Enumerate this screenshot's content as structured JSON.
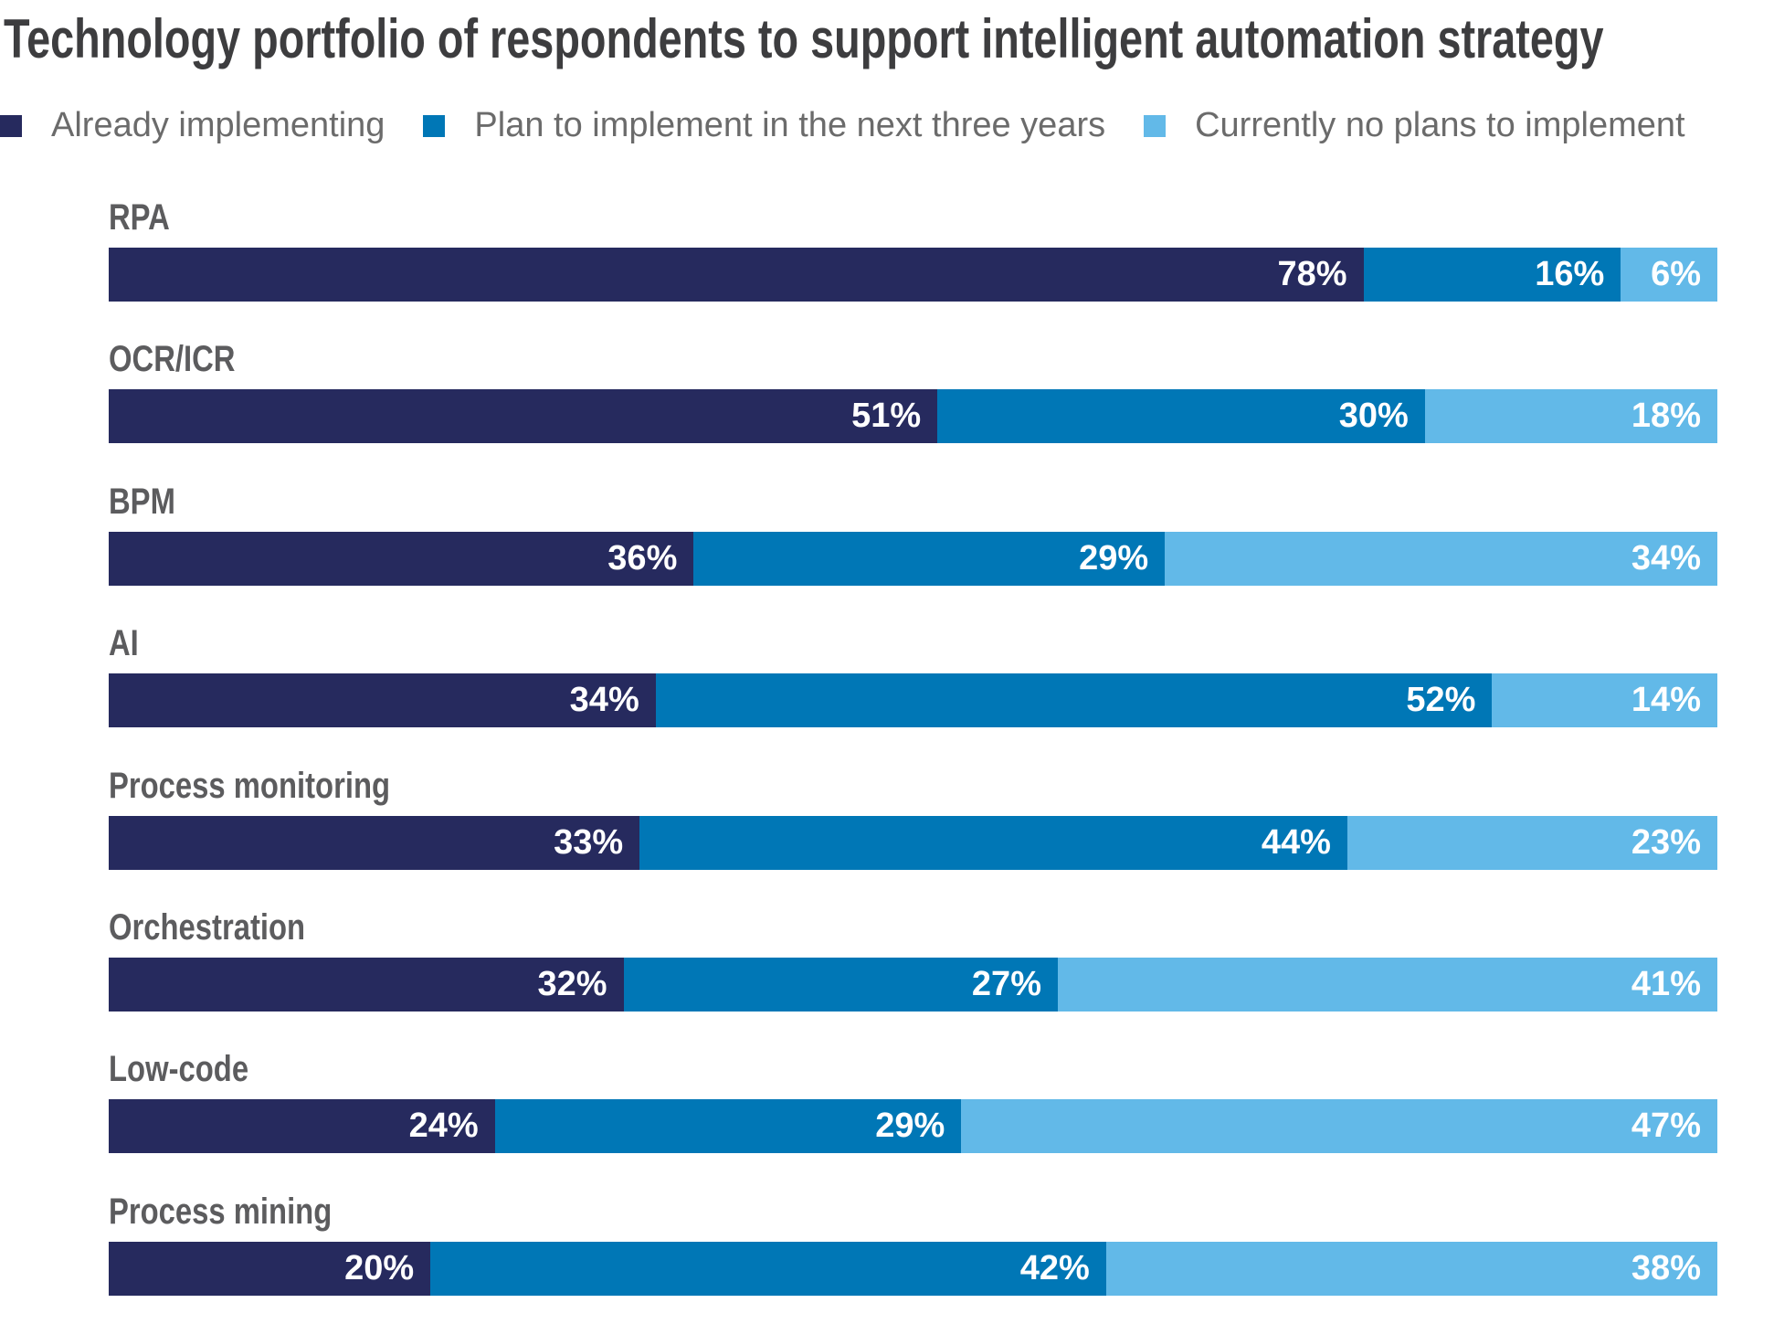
{
  "chart_data": {
    "type": "bar",
    "orientation": "horizontal",
    "stacked": true,
    "title": "Technology portfolio of respondents to support intelligent automation strategy",
    "legend_position": "top-left",
    "categories": [
      "RPA",
      "OCR/ICR",
      "BPM",
      "AI",
      "Process monitoring",
      "Orchestration",
      "Low-code",
      "Process mining"
    ],
    "series": [
      {
        "name": "Already implementing",
        "color": "#262a5e",
        "values": [
          78,
          51,
          36,
          34,
          33,
          32,
          24,
          20
        ]
      },
      {
        "name": "Plan to implement in the next three years",
        "color": "#0077b6",
        "values": [
          16,
          30,
          29,
          52,
          44,
          27,
          29,
          42
        ]
      },
      {
        "name": "Currently no plans to implement",
        "color": "#62b9e8",
        "values": [
          6,
          18,
          34,
          14,
          23,
          41,
          47,
          38
        ]
      }
    ],
    "value_suffix": "%"
  }
}
